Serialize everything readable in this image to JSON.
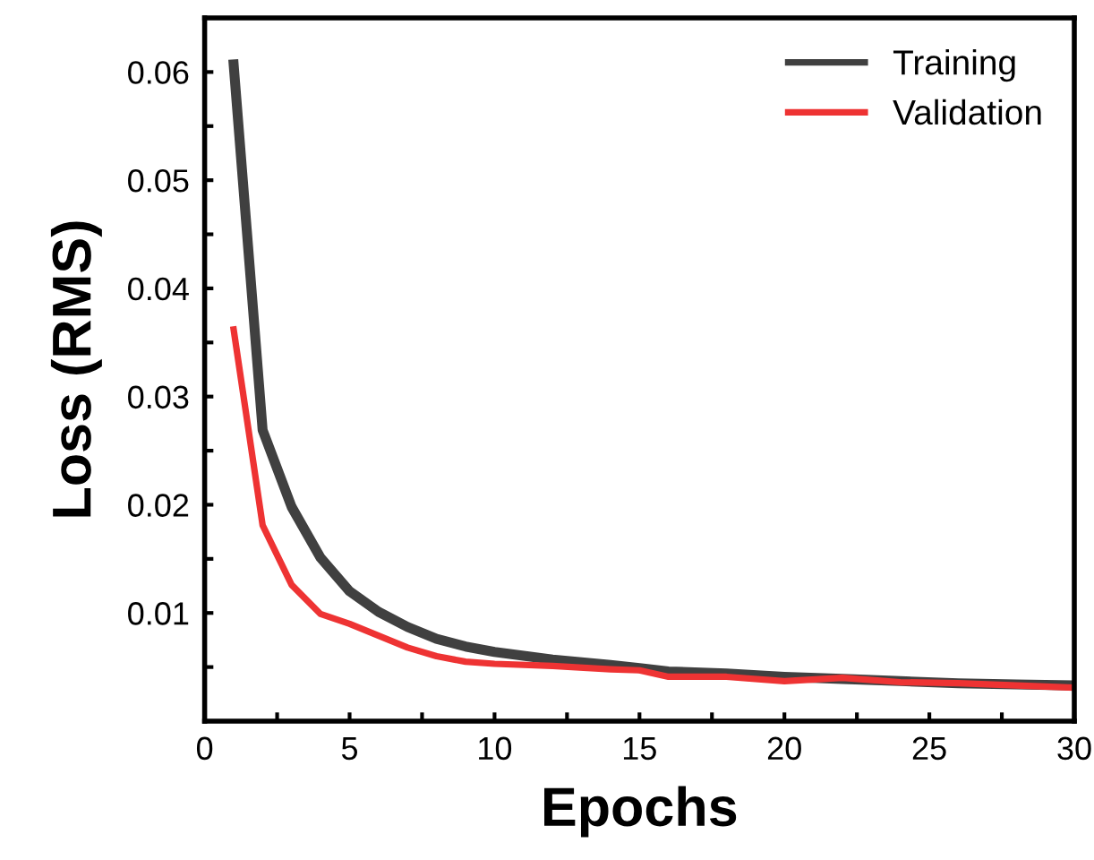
{
  "chart_data": {
    "type": "line",
    "xlabel": "Epochs",
    "ylabel": "Loss (RMS)",
    "xlim": [
      0,
      30
    ],
    "ylim": [
      0,
      0.065
    ],
    "xticks": [
      0,
      {
        "value": 2.5,
        "label": null
      },
      5,
      {
        "value": 7.5,
        "label": null
      },
      10,
      {
        "value": 12.5,
        "label": null
      },
      15,
      {
        "value": 17.5,
        "label": null
      },
      20,
      {
        "value": 22.5,
        "label": null
      },
      25,
      {
        "value": 27.5,
        "label": null
      },
      30
    ],
    "yticks": [
      {
        "value": 0.005,
        "label": null
      },
      0.01,
      {
        "value": 0.015,
        "label": null
      },
      0.02,
      {
        "value": 0.025,
        "label": null
      },
      0.03,
      {
        "value": 0.035,
        "label": null
      },
      0.04,
      {
        "value": 0.045,
        "label": null
      },
      0.05,
      {
        "value": 0.055,
        "label": null
      },
      0.06
    ],
    "x": [
      1,
      2,
      3,
      4,
      5,
      6,
      7,
      8,
      9,
      10,
      12,
      14,
      15,
      16,
      18,
      20,
      22,
      24,
      26,
      28,
      30
    ],
    "legend": "top right",
    "grid": false,
    "marker": "none",
    "line_style": "solid",
    "series": [
      {
        "name": "Training",
        "color": "#404040",
        "values": [
          0.0607,
          0.0269,
          0.0198,
          0.0151,
          0.012,
          0.0101,
          0.0087,
          0.0076,
          0.0069,
          0.0064,
          0.0057,
          0.0052,
          0.0049,
          0.0046,
          0.0044,
          0.0041,
          0.0039,
          0.0037,
          0.0035,
          0.0034,
          0.0033
        ]
      },
      {
        "name": "Validation",
        "color": "#ee3333",
        "values": [
          0.0362,
          0.0181,
          0.0126,
          0.0099,
          0.009,
          0.0079,
          0.0068,
          0.006,
          0.0055,
          0.0053,
          0.0051,
          0.0048,
          0.0047,
          0.0041,
          0.0041,
          0.0037,
          0.004,
          0.0036,
          0.0035,
          0.0033,
          0.0031
        ]
      }
    ]
  }
}
